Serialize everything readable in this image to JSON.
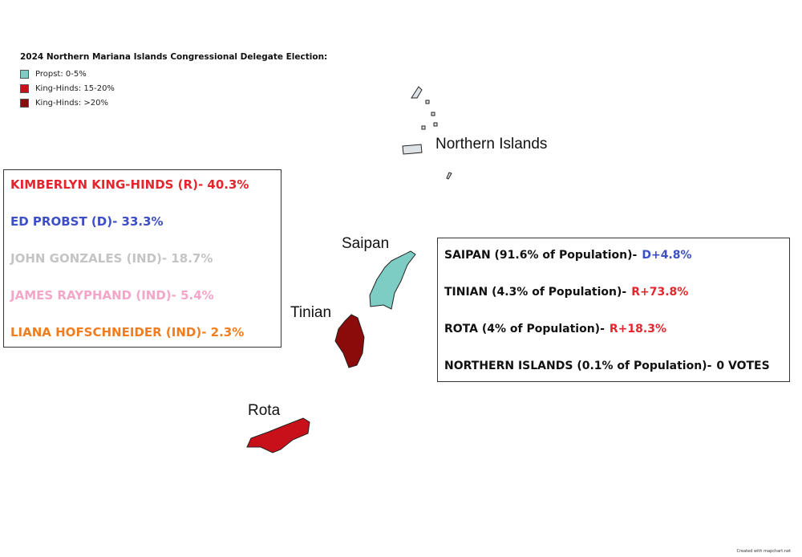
{
  "legend": {
    "title": "2024 Northern Mariana Islands Congressional Delegate Election:",
    "items": [
      {
        "label": "Propst: 0-5%",
        "color": "#7ecdc4"
      },
      {
        "label": "King-Hinds: 15-20%",
        "color": "#c8101a"
      },
      {
        "label": "King-Hinds: >20%",
        "color": "#8b0a0a"
      }
    ]
  },
  "labels": {
    "northern_islands": "Northern Islands",
    "saipan": "Saipan",
    "tinian": "Tinian",
    "rota": "Rota"
  },
  "candidates": [
    {
      "text": "KIMBERLYN KING-HINDS (R)- 40.3%",
      "color": "#e3262e"
    },
    {
      "text": "ED PROBST (D)- 33.3%",
      "color": "#3d4fc6"
    },
    {
      "text": "JOHN GONZALES (IND)- 18.7%",
      "color": "#c4c4c4"
    },
    {
      "text": "JAMES RAYPHAND (IND)- 5.4%",
      "color": "#f4a6c8"
    },
    {
      "text": "LIANA HOFSCHNEIDER (IND)- 2.3%",
      "color": "#f07d1e"
    }
  ],
  "islands": [
    {
      "name": "SAIPAN (91.6% of Population)-",
      "margin": "D+4.8%",
      "color": "#3d4fc6"
    },
    {
      "name": "TINIAN (4.3% of Population)-",
      "margin": "R+73.8%",
      "color": "#e3262e"
    },
    {
      "name": "ROTA (4% of Population)-",
      "margin": "R+18.3%",
      "color": "#e3262e"
    },
    {
      "name": "NORTHERN ISLANDS (0.1% of Population)-",
      "margin": "0 VOTES",
      "color": "#111111"
    }
  ],
  "footer": "Created with mapchart.net"
}
